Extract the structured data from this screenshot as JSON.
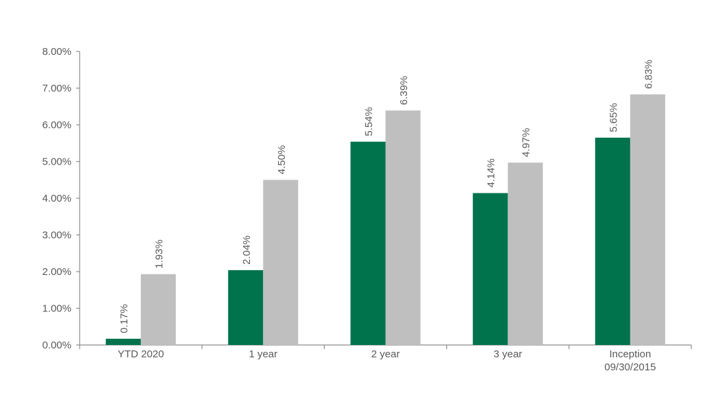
{
  "chart_data": {
    "type": "bar",
    "categories": [
      [
        "YTD 2020"
      ],
      [
        "1 year"
      ],
      [
        "2 year"
      ],
      [
        "3 year"
      ],
      [
        "Inception",
        "09/30/2015"
      ]
    ],
    "series": [
      {
        "values": [
          0.17,
          2.04,
          5.54,
          4.14,
          5.65
        ],
        "color": "#00734d"
      },
      {
        "values": [
          1.93,
          4.5,
          6.39,
          4.97,
          6.83
        ],
        "color": "#bfbfbf"
      }
    ],
    "value_format": "percent-2dp",
    "yticks": [
      0,
      1,
      2,
      3,
      4,
      5,
      6,
      7,
      8
    ],
    "ylim": [
      0,
      8
    ],
    "data_labels": "rotated-vertical",
    "grid": false,
    "legend": "none",
    "title": "",
    "xlabel": "",
    "ylabel": ""
  }
}
